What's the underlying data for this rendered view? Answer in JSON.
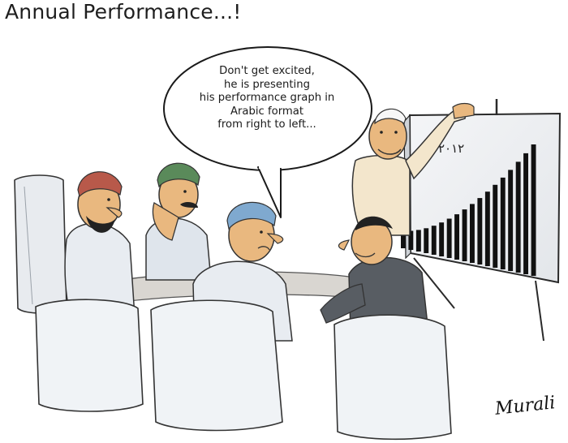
{
  "title": "Annual Performance...!",
  "speech_bubble": {
    "lines": [
      "Don't get excited,",
      "he is presenting",
      "his performance graph in",
      "Arabic format",
      "from right to left..."
    ]
  },
  "chart_board": {
    "year_label": "٢٠١٢",
    "bar_count": 18,
    "trend": "rising bar heights"
  },
  "signature": "Murali",
  "colors": {
    "ink": "#1a1a1a",
    "shirt_light": "#e8ecf1",
    "shirt_presenter": "#f3e6cc",
    "jacket_dark": "#585d63",
    "cap_red": "#b8594a",
    "cap_green": "#5a8a5a",
    "cap_blue": "#7fa9cf",
    "table": "#d9d6d1",
    "board_bg": "#eef0f3"
  }
}
